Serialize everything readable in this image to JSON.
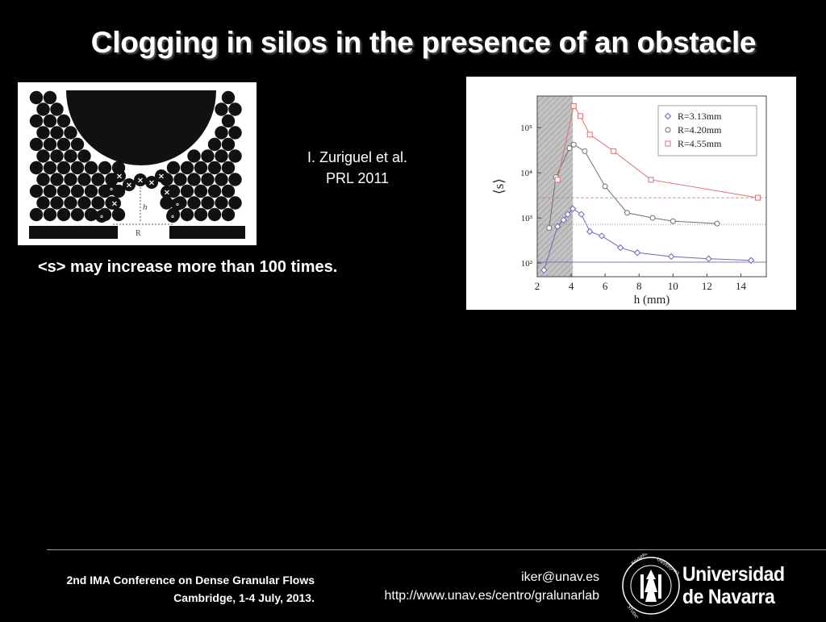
{
  "slide": {
    "title": "Clogging in silos in the presence of an obstacle",
    "citation_line1": "I. Zuriguel et al.",
    "citation_line2": "PRL 2011",
    "bullet": "<s> may increase more than 100 times."
  },
  "photo": {
    "label_h": "h",
    "label_R": "R"
  },
  "footer": {
    "conference": "2nd IMA Conference on Dense Granular Flows",
    "venue": "Cambridge, 1-4 July, 2013.",
    "email": "iker@unav.es",
    "url": "http://www.unav.es/centro/gralunarlab",
    "university_line1": "Universidad",
    "university_line2": "de Navarra"
  },
  "chart_data": {
    "type": "line",
    "xlabel": "h (mm)",
    "ylabel": "⟨s⟩",
    "log_y": true,
    "xlim": [
      2,
      15.5
    ],
    "ylim": [
      50,
      500000
    ],
    "xticks": [
      "2",
      "4",
      "6",
      "8",
      "10",
      "12",
      "14"
    ],
    "yticks": [
      "10²",
      "10³",
      "10⁴",
      "10⁵"
    ],
    "shaded_x_range": [
      2,
      4.1
    ],
    "legend_position": "top-right",
    "series": [
      {
        "name": "R=3.13mm",
        "marker": "diamond",
        "color": "#6a6ab8",
        "x": [
          2.4,
          3.2,
          3.55,
          3.8,
          4.1,
          4.6,
          5.1,
          5.8,
          6.9,
          7.9,
          9.9,
          12.1,
          14.6
        ],
        "y": [
          70,
          650,
          900,
          1200,
          1600,
          1200,
          500,
          400,
          220,
          170,
          140,
          125,
          115
        ],
        "asymptote": 105
      },
      {
        "name": "R=4.20mm",
        "marker": "circle",
        "color": "#707070",
        "x": [
          2.7,
          3.1,
          3.9,
          4.15,
          4.8,
          6.0,
          7.3,
          8.8,
          10.0,
          12.6
        ],
        "y": [
          600,
          8000,
          35000,
          42000,
          30000,
          5000,
          1300,
          1000,
          850,
          750
        ],
        "asymptote": 720
      },
      {
        "name": "R=4.55mm",
        "marker": "square",
        "color": "#e07070",
        "x": [
          3.2,
          4.15,
          4.55,
          5.1,
          6.5,
          8.7,
          15.0
        ],
        "y": [
          7000,
          300000,
          180000,
          70000,
          30000,
          7000,
          2800
        ],
        "asymptote": 2800
      }
    ]
  },
  "colors": {
    "background": "#000000",
    "text": "#ffffff",
    "chart_shade": "#b5b5b5"
  }
}
